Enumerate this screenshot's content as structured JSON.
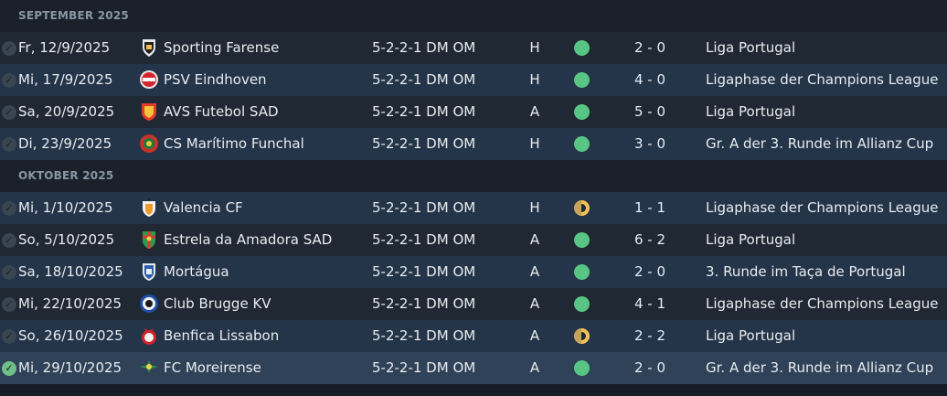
{
  "colors": {
    "win": "#58c585",
    "draw": "#f0c35a",
    "row_odd": "#1f2833",
    "row_even": "#243449",
    "row_selected": "#2f4257",
    "section_text": "#8a96a3"
  },
  "sections": [
    {
      "title": "SEPTEMBER 2025",
      "matches": [
        {
          "date": "Fr, 12/9/2025",
          "team": "Sporting Farense",
          "crest_icon": "farense-crest-icon",
          "tactic": "5-2-2-1 DM OM",
          "venue": "H",
          "result": "win",
          "score": "2 - 0",
          "competition": "Liga Portugal"
        },
        {
          "date": "Mi, 17/9/2025",
          "team": "PSV Eindhoven",
          "crest_icon": "psv-crest-icon",
          "tactic": "5-2-2-1 DM OM",
          "venue": "H",
          "result": "win",
          "score": "4 - 0",
          "competition": "Ligaphase der Champions League"
        },
        {
          "date": "Sa, 20/9/2025",
          "team": "AVS Futebol SAD",
          "crest_icon": "avs-crest-icon",
          "tactic": "5-2-2-1 DM OM",
          "venue": "A",
          "result": "win",
          "score": "5 - 0",
          "competition": "Liga Portugal"
        },
        {
          "date": "Di, 23/9/2025",
          "team": "CS Marítimo Funchal",
          "crest_icon": "maritimo-crest-icon",
          "tactic": "5-2-2-1 DM OM",
          "venue": "H",
          "result": "win",
          "score": "3 - 0",
          "competition": "Gr. A der 3. Runde im Allianz Cup"
        }
      ]
    },
    {
      "title": "OKTOBER 2025",
      "matches": [
        {
          "date": "Mi, 1/10/2025",
          "team": "Valencia CF",
          "crest_icon": "valencia-crest-icon",
          "tactic": "5-2-2-1 DM OM",
          "venue": "H",
          "result": "draw",
          "score": "1 - 1",
          "competition": "Ligaphase der Champions League"
        },
        {
          "date": "So, 5/10/2025",
          "team": "Estrela da Amadora SAD",
          "crest_icon": "estrela-crest-icon",
          "tactic": "5-2-2-1 DM OM",
          "venue": "A",
          "result": "win",
          "score": "6 - 2",
          "competition": "Liga Portugal"
        },
        {
          "date": "Sa, 18/10/2025",
          "team": "Mortágua",
          "crest_icon": "mortagua-crest-icon",
          "tactic": "5-2-2-1 DM OM",
          "venue": "A",
          "result": "win",
          "score": "2 - 0",
          "competition": "3. Runde im Taça de Portugal"
        },
        {
          "date": "Mi, 22/10/2025",
          "team": "Club Brugge KV",
          "crest_icon": "brugge-crest-icon",
          "tactic": "5-2-2-1 DM OM",
          "venue": "A",
          "result": "win",
          "score": "4 - 1",
          "competition": "Ligaphase der Champions League"
        },
        {
          "date": "So, 26/10/2025",
          "team": "Benfica Lissabon",
          "crest_icon": "benfica-crest-icon",
          "tactic": "5-2-2-1 DM OM",
          "venue": "A",
          "result": "draw",
          "score": "2 - 2",
          "competition": "Liga Portugal"
        },
        {
          "date": "Mi, 29/10/2025",
          "team": "FC Moreirense",
          "crest_icon": "moreirense-crest-icon",
          "tactic": "5-2-2-1 DM OM",
          "venue": "A",
          "result": "win",
          "score": "2 - 0",
          "competition": "Gr. A der 3. Runde im Allianz Cup",
          "selected": true
        }
      ]
    }
  ]
}
